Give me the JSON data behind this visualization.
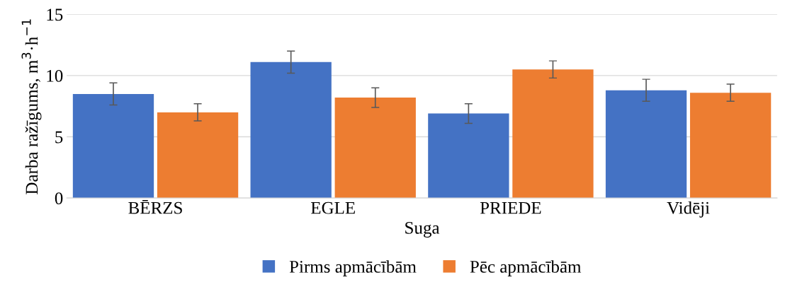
{
  "chart_data": {
    "type": "bar",
    "xlabel": "Suga",
    "ylabel": "Darba ražīgums, m$^{3}$·h$^{−1}$",
    "categories": [
      "BĒRZS",
      "EGLE",
      "PRIEDE",
      "Vidēji"
    ],
    "series": [
      {
        "name": "Pirms apmācībām",
        "color": "#4472c4",
        "values": [
          8.5,
          11.1,
          6.9,
          8.8
        ],
        "errors": [
          0.9,
          0.9,
          0.8,
          0.9
        ]
      },
      {
        "name": "Pēc apmācībām",
        "color": "#ed7d31",
        "values": [
          7.0,
          8.2,
          10.5,
          8.6
        ],
        "errors": [
          0.7,
          0.8,
          0.7,
          0.7
        ]
      }
    ],
    "ylim": [
      0,
      15
    ],
    "yticks": [
      0,
      5,
      10,
      15
    ],
    "grid": "y",
    "legend": "bottom"
  }
}
